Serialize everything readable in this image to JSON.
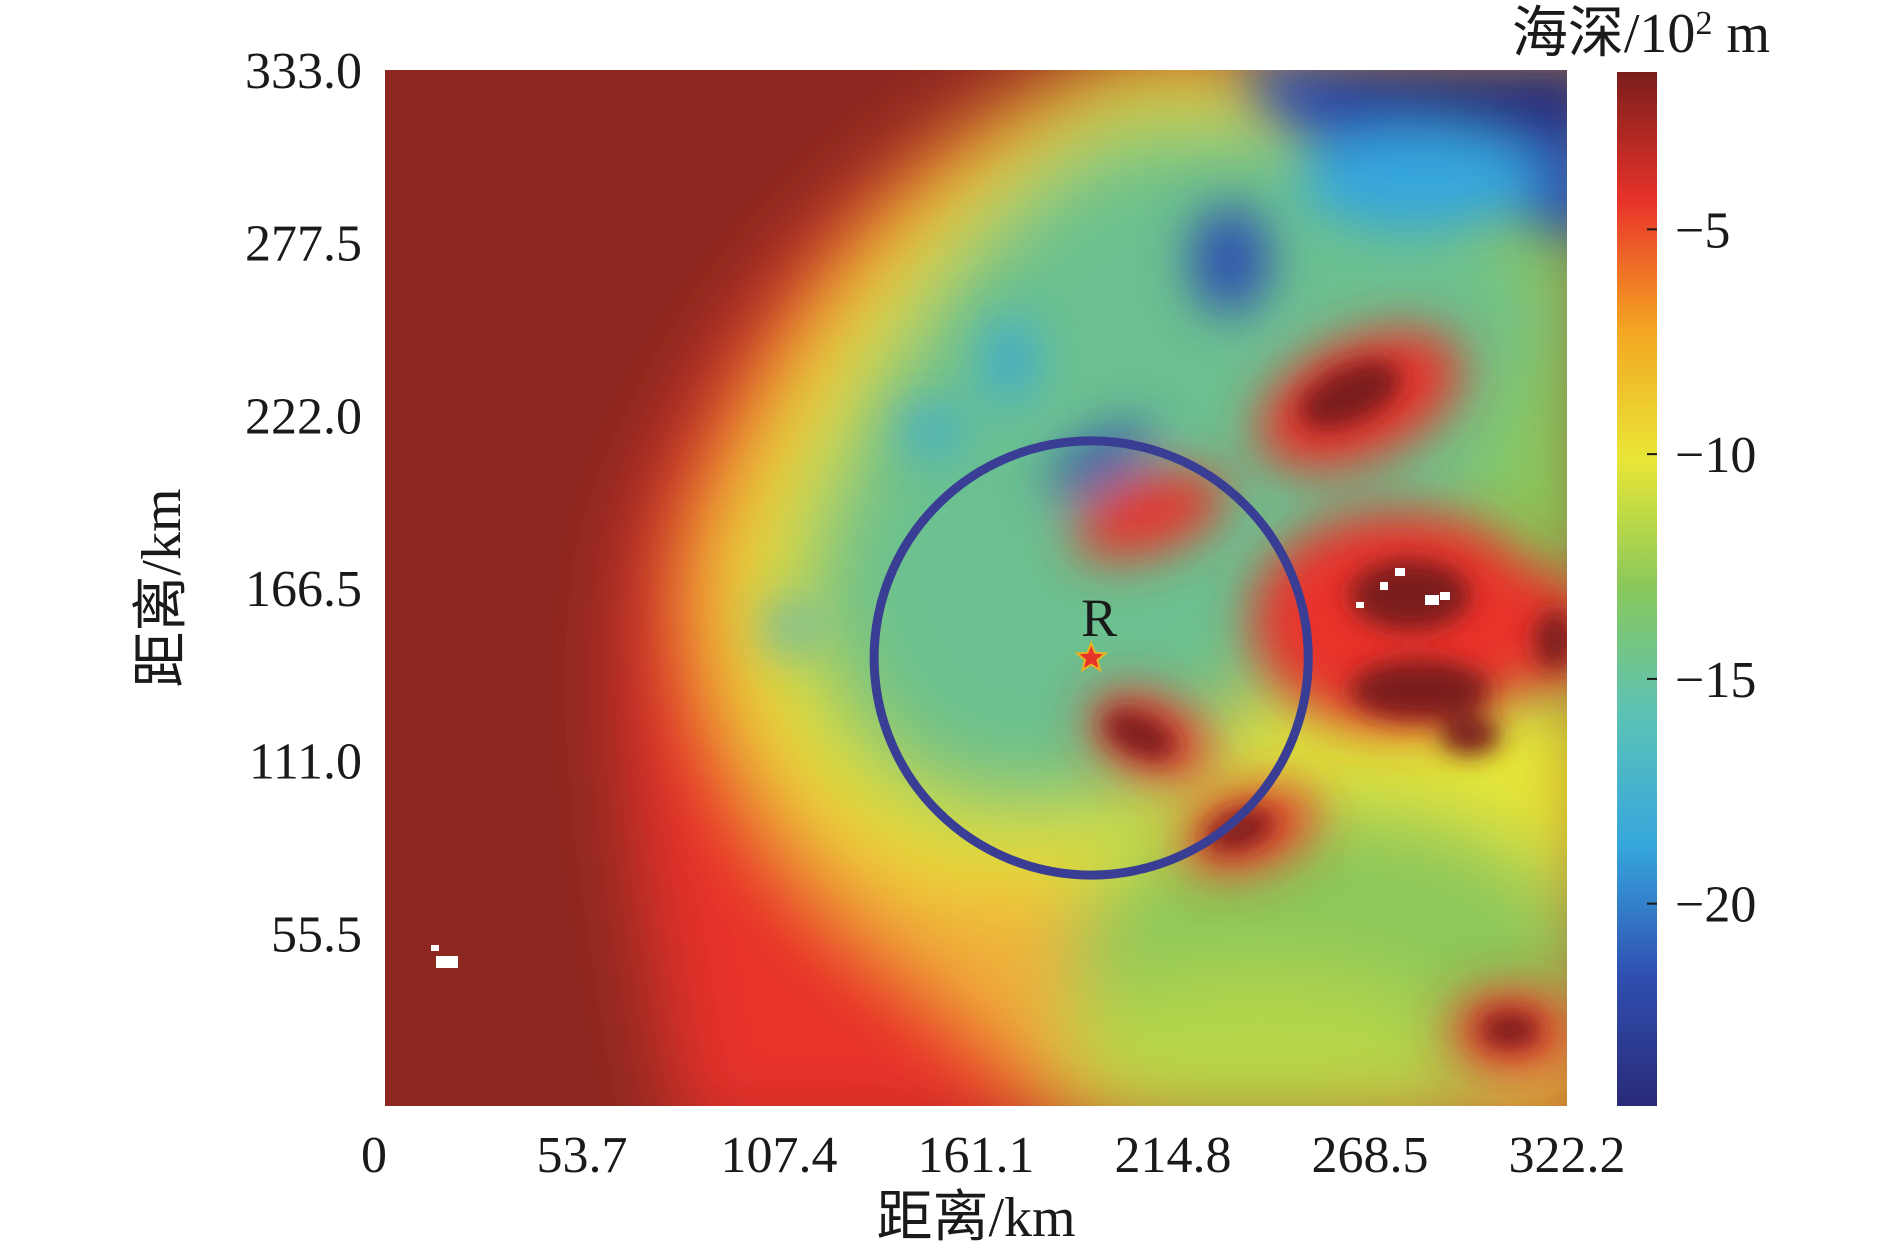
{
  "chart_data": {
    "type": "heatmap",
    "title": "",
    "xlabel": "距离/km",
    "ylabel": "距离/km",
    "xlim": [
      0,
      322.2
    ],
    "ylim": [
      0,
      333.0
    ],
    "x_ticks": [
      0,
      53.7,
      107.4,
      161.1,
      214.8,
      268.5,
      322.2
    ],
    "x_tick_labels": [
      "0",
      "53.7",
      "107.4",
      "161.1",
      "214.8",
      "268.5",
      "322.2"
    ],
    "y_ticks": [
      55.5,
      111.0,
      166.5,
      222.0,
      277.5,
      333.0
    ],
    "y_tick_labels": [
      "55.5",
      "111.0",
      "166.5",
      "222.0",
      "277.5",
      "333.0"
    ],
    "colorbar": {
      "label_prefix": "海深/10",
      "label_sup": "2",
      "label_suffix": " m",
      "range": [
        -24.5,
        -1.5
      ],
      "ticks": [
        -5,
        -10,
        -15,
        -20
      ],
      "tick_labels": [
        "−5",
        "−10",
        "−15",
        "−20"
      ],
      "colors": [
        "#2a2a78",
        "#2f4fb0",
        "#35a6dd",
        "#5bc2b8",
        "#88c85c",
        "#e8e636",
        "#f5a623",
        "#e8332a",
        "#7a1e1a"
      ]
    },
    "marker": {
      "label": "R",
      "x": 192.5,
      "y": 144.0,
      "symbol": "star",
      "color": "#e8332a"
    },
    "circle": {
      "center_x": 192.5,
      "center_y": 144.0,
      "radius_km": 48.5,
      "color": "#3a3d94"
    }
  }
}
